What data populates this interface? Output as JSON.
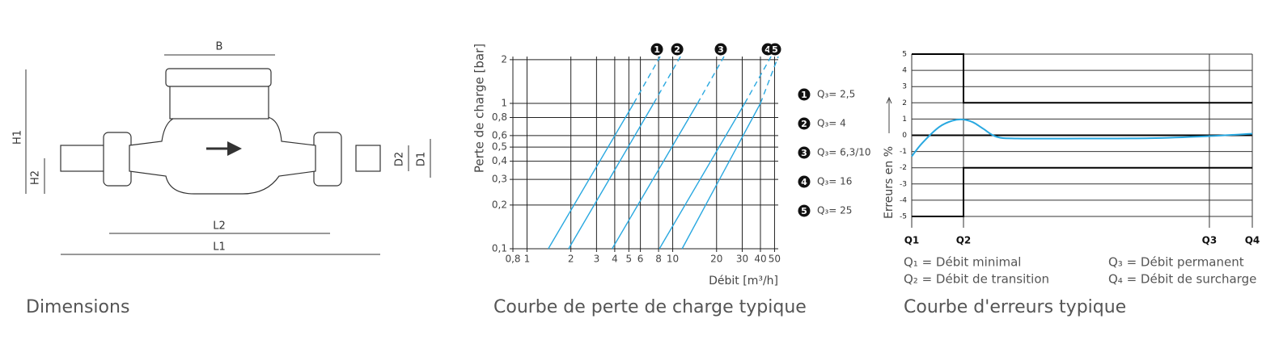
{
  "dimensions": {
    "caption": "Dimensions",
    "labels": {
      "B": "B",
      "H1": "H1",
      "H2": "H2",
      "D2": "D2",
      "D1": "D1",
      "L2": "L2",
      "L1": "L1"
    }
  },
  "chart_data": [
    {
      "type": "line",
      "title": "Courbe de perte de charge typique",
      "xlabel": "Débit [m³/h]",
      "ylabel": "Perte de charge [bar]",
      "xscale": "log",
      "yscale": "log",
      "grid": true,
      "xlim": [
        0.8,
        53
      ],
      "ylim": [
        0.1,
        2.1
      ],
      "xticks": [
        {
          "value": 0.8,
          "label": "0,8"
        },
        1,
        2,
        3,
        4,
        5,
        6,
        8,
        10,
        20,
        30,
        40,
        50
      ],
      "yticks": [
        {
          "value": 0.1,
          "label": "0,1"
        },
        {
          "value": 0.2,
          "label": "0,2"
        },
        {
          "value": 0.3,
          "label": "0,3"
        },
        {
          "value": 0.4,
          "label": "0,4"
        },
        {
          "value": 0.5,
          "label": "0,5"
        },
        {
          "value": 0.6,
          "label": "0,6"
        },
        {
          "value": 0.8,
          "label": "0,8"
        },
        1,
        2
      ],
      "labels": [
        "1",
        "2",
        "3",
        "4",
        "5"
      ],
      "series": [
        {
          "name": "Q₃= 2,5",
          "color": "#29a8e0",
          "x": [
            1.4,
            5.4,
            8.2
          ],
          "values": [
            0.1,
            1,
            2.1
          ]
        },
        {
          "name": "Q₃= 4",
          "color": "#29a8e0",
          "x": [
            1.93,
            7.4,
            11.3
          ],
          "values": [
            0.1,
            1,
            2.1
          ]
        },
        {
          "name": "Q₃= 6,3/10",
          "color": "#29a8e0",
          "x": [
            3.84,
            14.8,
            22.5
          ],
          "values": [
            0.1,
            1,
            2.1
          ]
        },
        {
          "name": "Q₃= 16",
          "color": "#29a8e0",
          "x": [
            8.1,
            31.2,
            47.3
          ],
          "values": [
            0.1,
            1,
            2.1
          ]
        },
        {
          "name": "Q₃= 25",
          "color": "#29a8e0",
          "x": [
            11.6,
            40,
            53
          ],
          "values": [
            0.1,
            1,
            2.1
          ]
        }
      ]
    },
    {
      "type": "line",
      "title": "Courbe d'erreurs typique",
      "ylabel": "Erreurs en %",
      "xlim": [
        0,
        100
      ],
      "ylim": [
        -5,
        5
      ],
      "xticks": [
        {
          "value": 0,
          "label": "Q1"
        },
        {
          "value": 15.2,
          "label": "Q2"
        },
        {
          "value": 87.4,
          "label": "Q3"
        },
        {
          "value": 100,
          "label": "Q4"
        }
      ],
      "yticks": [
        5,
        4,
        3,
        2,
        1,
        0,
        -1,
        -2,
        -3,
        -4,
        -5
      ],
      "legend": [
        "Q₁ = Débit minimal",
        "Q₂ = Débit de transition",
        "Q₃ = Débit permanent",
        "Q₄ = Débit de surcharge"
      ],
      "series": [
        {
          "color": "#29a8e0",
          "x": [
            0,
            3,
            8,
            12,
            15,
            18,
            21,
            25,
            31,
            50,
            70,
            87.4,
            100
          ],
          "values": [
            -1.3,
            -0.5,
            0.5,
            0.9,
            0.97,
            0.8,
            0.4,
            -0.1,
            -0.2,
            -0.2,
            -0.18,
            -0.05,
            0.1
          ]
        }
      ],
      "limits": [
        {
          "color": "#000",
          "x": [
            0,
            15.2,
            15.2,
            100
          ],
          "values": [
            5,
            5,
            2,
            2
          ]
        },
        {
          "color": "#000",
          "x": [
            0,
            15.2,
            15.2,
            100
          ],
          "values": [
            -5,
            -5,
            -2,
            -2
          ]
        }
      ]
    }
  ]
}
